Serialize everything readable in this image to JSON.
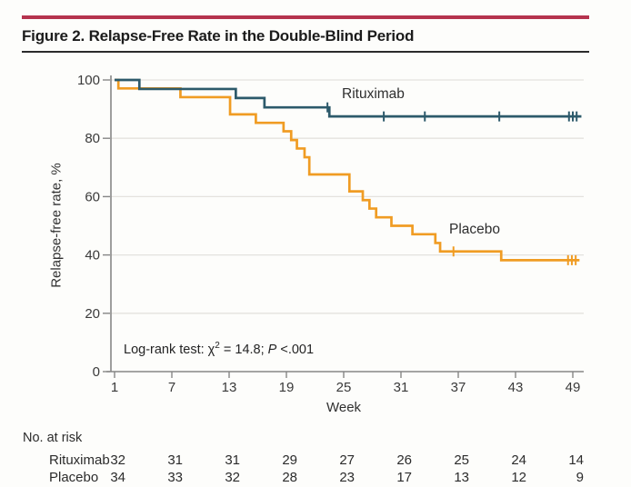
{
  "figure": {
    "title": "Figure 2. Relapse-Free Rate in the Double-Blind Period"
  },
  "colors": {
    "accent_rule": "#b5334e",
    "title_rule": "#2b2b2b",
    "rituximab": "#2d5a6b",
    "placebo": "#f09c23",
    "grid": "#e4e2de",
    "axis": "#868686"
  },
  "chart_data": {
    "type": "line",
    "subtype": "kaplan_meier_step",
    "title": "Figure 2. Relapse-Free Rate in the Double-Blind Period",
    "xlabel": "Week",
    "ylabel": "Relapse-free rate, %",
    "xlim": [
      1,
      49
    ],
    "ylim": [
      0,
      100
    ],
    "xticks": [
      1,
      7,
      13,
      19,
      25,
      31,
      37,
      43,
      49
    ],
    "yticks": [
      0,
      20,
      40,
      60,
      80,
      100
    ],
    "grid": "horizontal gridlines at y ticks",
    "legend_position": "labels next to curves",
    "annotation": {
      "full_text": "Log-rank test: χ2 = 14.8; P <.001",
      "prefix": "Log-rank test: χ",
      "sup": "2",
      "mid": " = 14.8; ",
      "pvar": "P",
      "suffix": " <.001"
    },
    "series": [
      {
        "name": "Placebo",
        "color": "#f09c23",
        "end_week": 49.7,
        "steps": [
          [
            1,
            100
          ],
          [
            1.4,
            97.1
          ],
          [
            7.9,
            94.1
          ],
          [
            13.1,
            88.2
          ],
          [
            15.8,
            85.3
          ],
          [
            18.7,
            82.4
          ],
          [
            19.5,
            79.4
          ],
          [
            20.1,
            76.5
          ],
          [
            20.9,
            73.5
          ],
          [
            21.4,
            67.6
          ],
          [
            25.6,
            61.8
          ],
          [
            27,
            58.8
          ],
          [
            27.7,
            55.9
          ],
          [
            28.4,
            52.9
          ],
          [
            30,
            50
          ],
          [
            32.2,
            47.1
          ],
          [
            34.6,
            44.1
          ],
          [
            35.1,
            41.2
          ],
          [
            41.5,
            38.2
          ]
        ],
        "censor_marks": [
          [
            36.5,
            41.2
          ],
          [
            48.5,
            38.2
          ],
          [
            48.9,
            38.2
          ],
          [
            49.3,
            38.2
          ]
        ]
      },
      {
        "name": "Rituximab",
        "color": "#2d5a6b",
        "end_week": 49.9,
        "steps": [
          [
            1,
            100
          ],
          [
            3.6,
            96.9
          ],
          [
            13.7,
            93.8
          ],
          [
            16.7,
            90.6
          ],
          [
            23.5,
            87.5
          ]
        ],
        "censor_marks": [
          [
            23.3,
            90.6
          ],
          [
            29.2,
            87.5
          ],
          [
            33.5,
            87.5
          ],
          [
            41.3,
            87.5
          ],
          [
            48.6,
            87.5
          ],
          [
            49.0,
            87.5
          ],
          [
            49.4,
            87.5
          ]
        ]
      }
    ],
    "at_risk": {
      "heading": "No. at risk",
      "weeks": [
        1,
        7,
        13,
        19,
        25,
        31,
        37,
        43,
        49
      ],
      "rows": [
        {
          "name": "Rituximab",
          "values": [
            "32",
            "31",
            "31",
            "29",
            "27",
            "26",
            "25",
            "24",
            "14"
          ]
        },
        {
          "name": "Placebo",
          "values": [
            "34",
            "33",
            "32",
            "28",
            "23",
            "17",
            "13",
            "12",
            "9"
          ]
        }
      ]
    }
  }
}
